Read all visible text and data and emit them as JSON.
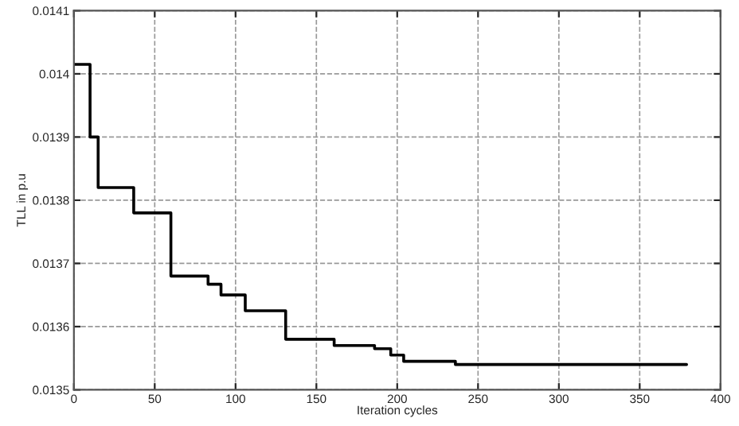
{
  "chart_data": {
    "type": "step",
    "xlabel": "Iteration cycles",
    "ylabel": "TLL in p.u",
    "x": [
      0,
      10,
      15,
      37,
      60,
      83,
      91,
      106,
      131,
      161,
      186,
      196,
      204,
      236,
      379
    ],
    "series": [
      {
        "color": "#000000",
        "values": [
          0.014015,
          0.0139,
          0.01382,
          0.01378,
          0.01368,
          0.013667,
          0.01365,
          0.013625,
          0.01358,
          0.01357,
          0.013565,
          0.013555,
          0.013545,
          0.01354,
          0.01354
        ]
      }
    ],
    "xlim": [
      0,
      400
    ],
    "xticks": [
      0,
      50,
      100,
      150,
      200,
      250,
      300,
      350,
      400
    ],
    "ylim": [
      0.0135,
      0.0141
    ],
    "yticks": [
      0.0135,
      0.0136,
      0.0137,
      0.0138,
      0.0139,
      0.014,
      0.0141
    ],
    "grid": true,
    "line_style": "solid",
    "marker": "none"
  }
}
